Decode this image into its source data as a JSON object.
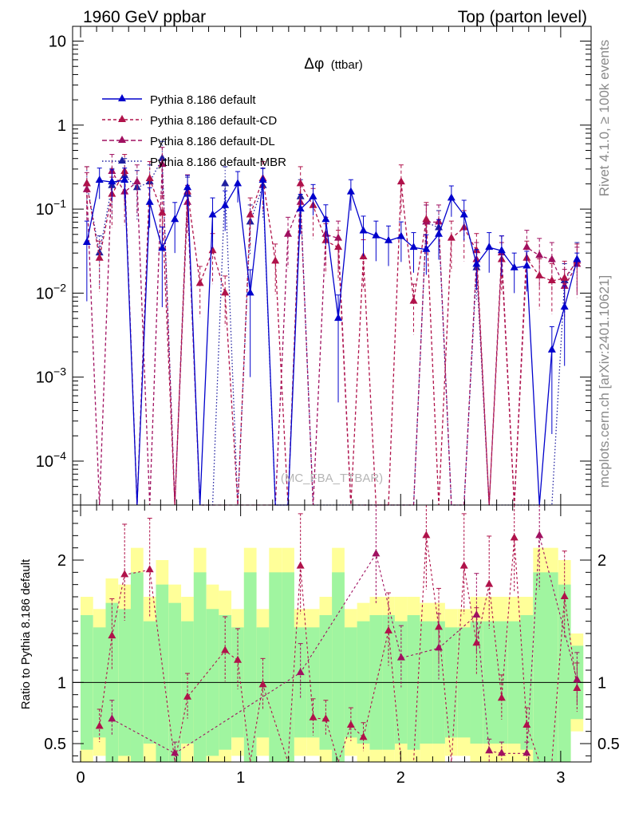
{
  "header": {
    "left": "1960 GeV ppbar",
    "right": "Top (parton level)"
  },
  "side": {
    "rivet": "Rivet 4.1.0, ≥ 100k events",
    "source": "mcplots.cern.ch [arXiv:2401.10621]"
  },
  "analysis_label": "(MC_FBA_TTBAR)",
  "colors": {
    "default": "#0000cc",
    "variant": "#b0124a",
    "band_green": "#a0f5a0",
    "band_yellow": "#ffff99"
  },
  "chart_data": [
    {
      "type": "line",
      "panel": "main",
      "title_symbol": "Δφ",
      "title_text": "(ttbar)",
      "xlabel": "",
      "ylabel": "",
      "yscale": "log",
      "ylim": [
        3e-05,
        15
      ],
      "xlim": [
        -0.05,
        3.19
      ],
      "yticks": [
        {
          "value": 10,
          "base": "10",
          "exp": ""
        },
        {
          "value": 1,
          "base": "1",
          "exp": ""
        },
        {
          "value": 0.1,
          "base": "10",
          "exp": "−1"
        },
        {
          "value": 0.01,
          "base": "10",
          "exp": "−2"
        },
        {
          "value": 0.001,
          "base": "10",
          "exp": "−3"
        },
        {
          "value": 0.0001,
          "base": "10",
          "exp": "−4"
        }
      ],
      "legend": [
        "Pythia 8.186 default",
        "Pythia 8.186 default-CD",
        "Pythia 8.186 default-DL",
        "Pythia 8.186 default-MBR"
      ],
      "legend_position": "top-left",
      "bin_width": 0.0785,
      "x": [
        0.039,
        0.118,
        0.196,
        0.275,
        0.353,
        0.432,
        0.51,
        0.589,
        0.668,
        0.746,
        0.825,
        0.903,
        0.982,
        1.06,
        1.139,
        1.217,
        1.296,
        1.374,
        1.453,
        1.532,
        1.61,
        1.689,
        1.767,
        1.846,
        1.924,
        2.003,
        2.081,
        2.16,
        2.238,
        2.317,
        2.396,
        2.474,
        2.553,
        2.631,
        2.71,
        2.788,
        2.867,
        2.945,
        3.024,
        3.102
      ],
      "series": [
        {
          "name": "Pythia 8.186 default",
          "style": "solid",
          "values": [
            0.04,
            0.22,
            0.21,
            0.22,
            3e-05,
            0.12,
            0.034,
            0.075,
            0.18,
            3e-05,
            0.085,
            0.11,
            0.2,
            0.01,
            0.22,
            3e-05,
            3e-05,
            0.1,
            0.14,
            0.075,
            0.005,
            0.16,
            0.055,
            0.048,
            0.042,
            0.047,
            0.035,
            0.033,
            0.05,
            0.135,
            0.085,
            0.022,
            0.035,
            0.032,
            0.02,
            0.021,
            3e-05,
            0.0021,
            0.0068,
            0.025
          ],
          "errors_rel": [
            0.8,
            0.4,
            0.4,
            0.4,
            0,
            0.5,
            0.8,
            0.6,
            0.4,
            0,
            0.6,
            0.5,
            0.4,
            0.9,
            0.4,
            0,
            0,
            0.5,
            0.4,
            0.5,
            0.9,
            0.4,
            0.5,
            0.5,
            0.5,
            0.5,
            0.5,
            0.5,
            0.5,
            0.4,
            0.5,
            0.5,
            0.5,
            0.5,
            0.5,
            0.5,
            0,
            0.9,
            0.8,
            0.2
          ]
        },
        {
          "name": "Pythia 8.186 default-CD",
          "style": "dashed",
          "values": [
            0.2,
            0.026,
            0.15,
            0.28,
            3e-05,
            0.23,
            0.09,
            3e-05,
            0.16,
            0.013,
            0.032,
            0.01,
            3e-05,
            0.085,
            0.23,
            0.024,
            3e-05,
            0.2,
            0.11,
            0.042,
            0.035,
            3e-05,
            0.027,
            3e-05,
            3e-05,
            0.21,
            0.008,
            0.075,
            3e-05,
            0.045,
            0.06,
            0.032,
            3e-05,
            0.025,
            3e-05,
            0.026,
            0.016,
            0.014,
            0.015,
            0.024
          ]
        },
        {
          "name": "Pythia 8.186 default-DL",
          "style": "dashed",
          "values": [
            0.17,
            3e-05,
            0.28,
            0.16,
            0.21,
            3e-05,
            0.34,
            3e-05,
            0.12,
            3e-05,
            3e-05,
            3e-05,
            3e-05,
            3e-05,
            3e-05,
            3e-05,
            0.05,
            0.12,
            3e-05,
            0.05,
            0.045,
            3e-05,
            3e-05,
            3e-05,
            3e-05,
            3e-05,
            3e-05,
            0.07,
            0.07,
            3e-05,
            3e-05,
            0.025,
            3e-05,
            0.03,
            3e-05,
            0.035,
            0.028,
            0.025,
            0.012,
            0.022
          ]
        },
        {
          "name": "Pythia 8.186 default-MBR",
          "style": "dotted",
          "values": [
            0.2,
            0.03,
            0.19,
            0.25,
            0.18,
            0.21,
            0.4,
            3e-05,
            0.15,
            3e-05,
            3e-05,
            0.2,
            3e-05,
            0.07,
            0.19,
            3e-05,
            3e-05,
            0.14,
            3e-05,
            3e-05,
            3e-05,
            3e-05,
            3e-05,
            3e-05,
            3e-05,
            3e-05,
            3e-05,
            0.07,
            0.06,
            3e-05,
            3e-05,
            0.02,
            3e-05,
            3e-05,
            3e-05,
            3e-05,
            3e-05,
            3e-05,
            0.014,
            0.025
          ]
        }
      ]
    },
    {
      "type": "line",
      "panel": "ratio",
      "ylabel": "Ratio to Pythia 8.186 default",
      "xlabel": "",
      "ylim": [
        0.35,
        2.45
      ],
      "xlim": [
        -0.05,
        3.19
      ],
      "yticks": [
        0.5,
        1,
        2
      ],
      "yticklabels": [
        "0.5",
        "1",
        "2"
      ],
      "xticks": [
        0,
        1,
        2,
        3
      ],
      "xticklabels": [
        "0",
        "1",
        "2",
        "3"
      ],
      "reference_line": 1,
      "band_green_halfwidth": [
        0.55,
        0.45,
        0.65,
        0.6,
        0.9,
        0.5,
        0.8,
        0.65,
        0.5,
        0.9,
        0.6,
        0.55,
        0.45,
        0.9,
        0.45,
        0.9,
        0.9,
        0.45,
        0.45,
        0.55,
        0.9,
        0.45,
        0.5,
        0.55,
        0.55,
        0.5,
        0.55,
        0.5,
        0.5,
        0.45,
        0.45,
        0.5,
        0.5,
        0.5,
        0.5,
        0.55,
        0.9,
        0.9,
        0.8,
        0.3
      ],
      "band_yellow_halfwidth": [
        0.7,
        0.6,
        0.85,
        0.8,
        1.1,
        0.7,
        1.0,
        0.8,
        0.7,
        1.1,
        0.8,
        0.75,
        0.6,
        1.1,
        0.6,
        1.1,
        1.1,
        0.6,
        0.6,
        0.7,
        1.1,
        0.6,
        0.65,
        0.7,
        0.7,
        0.7,
        0.7,
        0.65,
        0.65,
        0.6,
        0.6,
        0.7,
        0.7,
        0.7,
        0.7,
        0.7,
        1.1,
        1.1,
        1.0,
        0.4
      ],
      "series": [
        {
          "name": "Pythia 8.186 default-CD",
          "points": [
            [
              0.118,
              0.64
            ],
            [
              0.196,
              1.38
            ],
            [
              0.275,
              1.88
            ],
            [
              0.432,
              1.92
            ],
            [
              0.668,
              0.88
            ],
            [
              0.903,
              1.26
            ],
            [
              0.982,
              1.18
            ],
            [
              1.139,
              0.98
            ],
            [
              1.374,
              1.95
            ],
            [
              1.453,
              0.71
            ],
            [
              1.532,
              0.7
            ],
            [
              1.689,
              0.65
            ],
            [
              1.767,
              0.55
            ],
            [
              1.924,
              1.42
            ],
            [
              2.16,
              2.2
            ],
            [
              2.238,
              1.45
            ],
            [
              2.396,
              1.95
            ],
            [
              2.474,
              1.32
            ],
            [
              2.553,
              1.8
            ],
            [
              2.631,
              0.87
            ],
            [
              2.71,
              2.18
            ],
            [
              2.788,
              0.65
            ],
            [
              3.024,
              1.7
            ],
            [
              3.102,
              0.95
            ]
          ],
          "lows": [
            [
              0.589,
              0.35
            ],
            [
              1.06,
              0.35
            ],
            [
              1.296,
              0.35
            ],
            [
              1.61,
              0.35
            ],
            [
              2.003,
              0.35
            ],
            [
              2.081,
              0.35
            ],
            [
              2.317,
              0.35
            ],
            [
              2.867,
              0.35
            ],
            [
              2.945,
              0.35
            ]
          ]
        },
        {
          "name": "Pythia 8.186 default-DL",
          "points": [
            [
              0.196,
              0.7
            ],
            [
              0.589,
              0.42
            ],
            [
              1.374,
              1.08
            ],
            [
              1.846,
              2.05
            ],
            [
              2.003,
              1.2
            ],
            [
              2.238,
              1.28
            ],
            [
              2.474,
              1.55
            ],
            [
              2.553,
              0.44
            ],
            [
              2.631,
              0.42
            ],
            [
              2.788,
              0.42
            ],
            [
              2.867,
              2.2
            ],
            [
              3.102,
              1.02
            ]
          ],
          "lows": []
        }
      ]
    }
  ]
}
